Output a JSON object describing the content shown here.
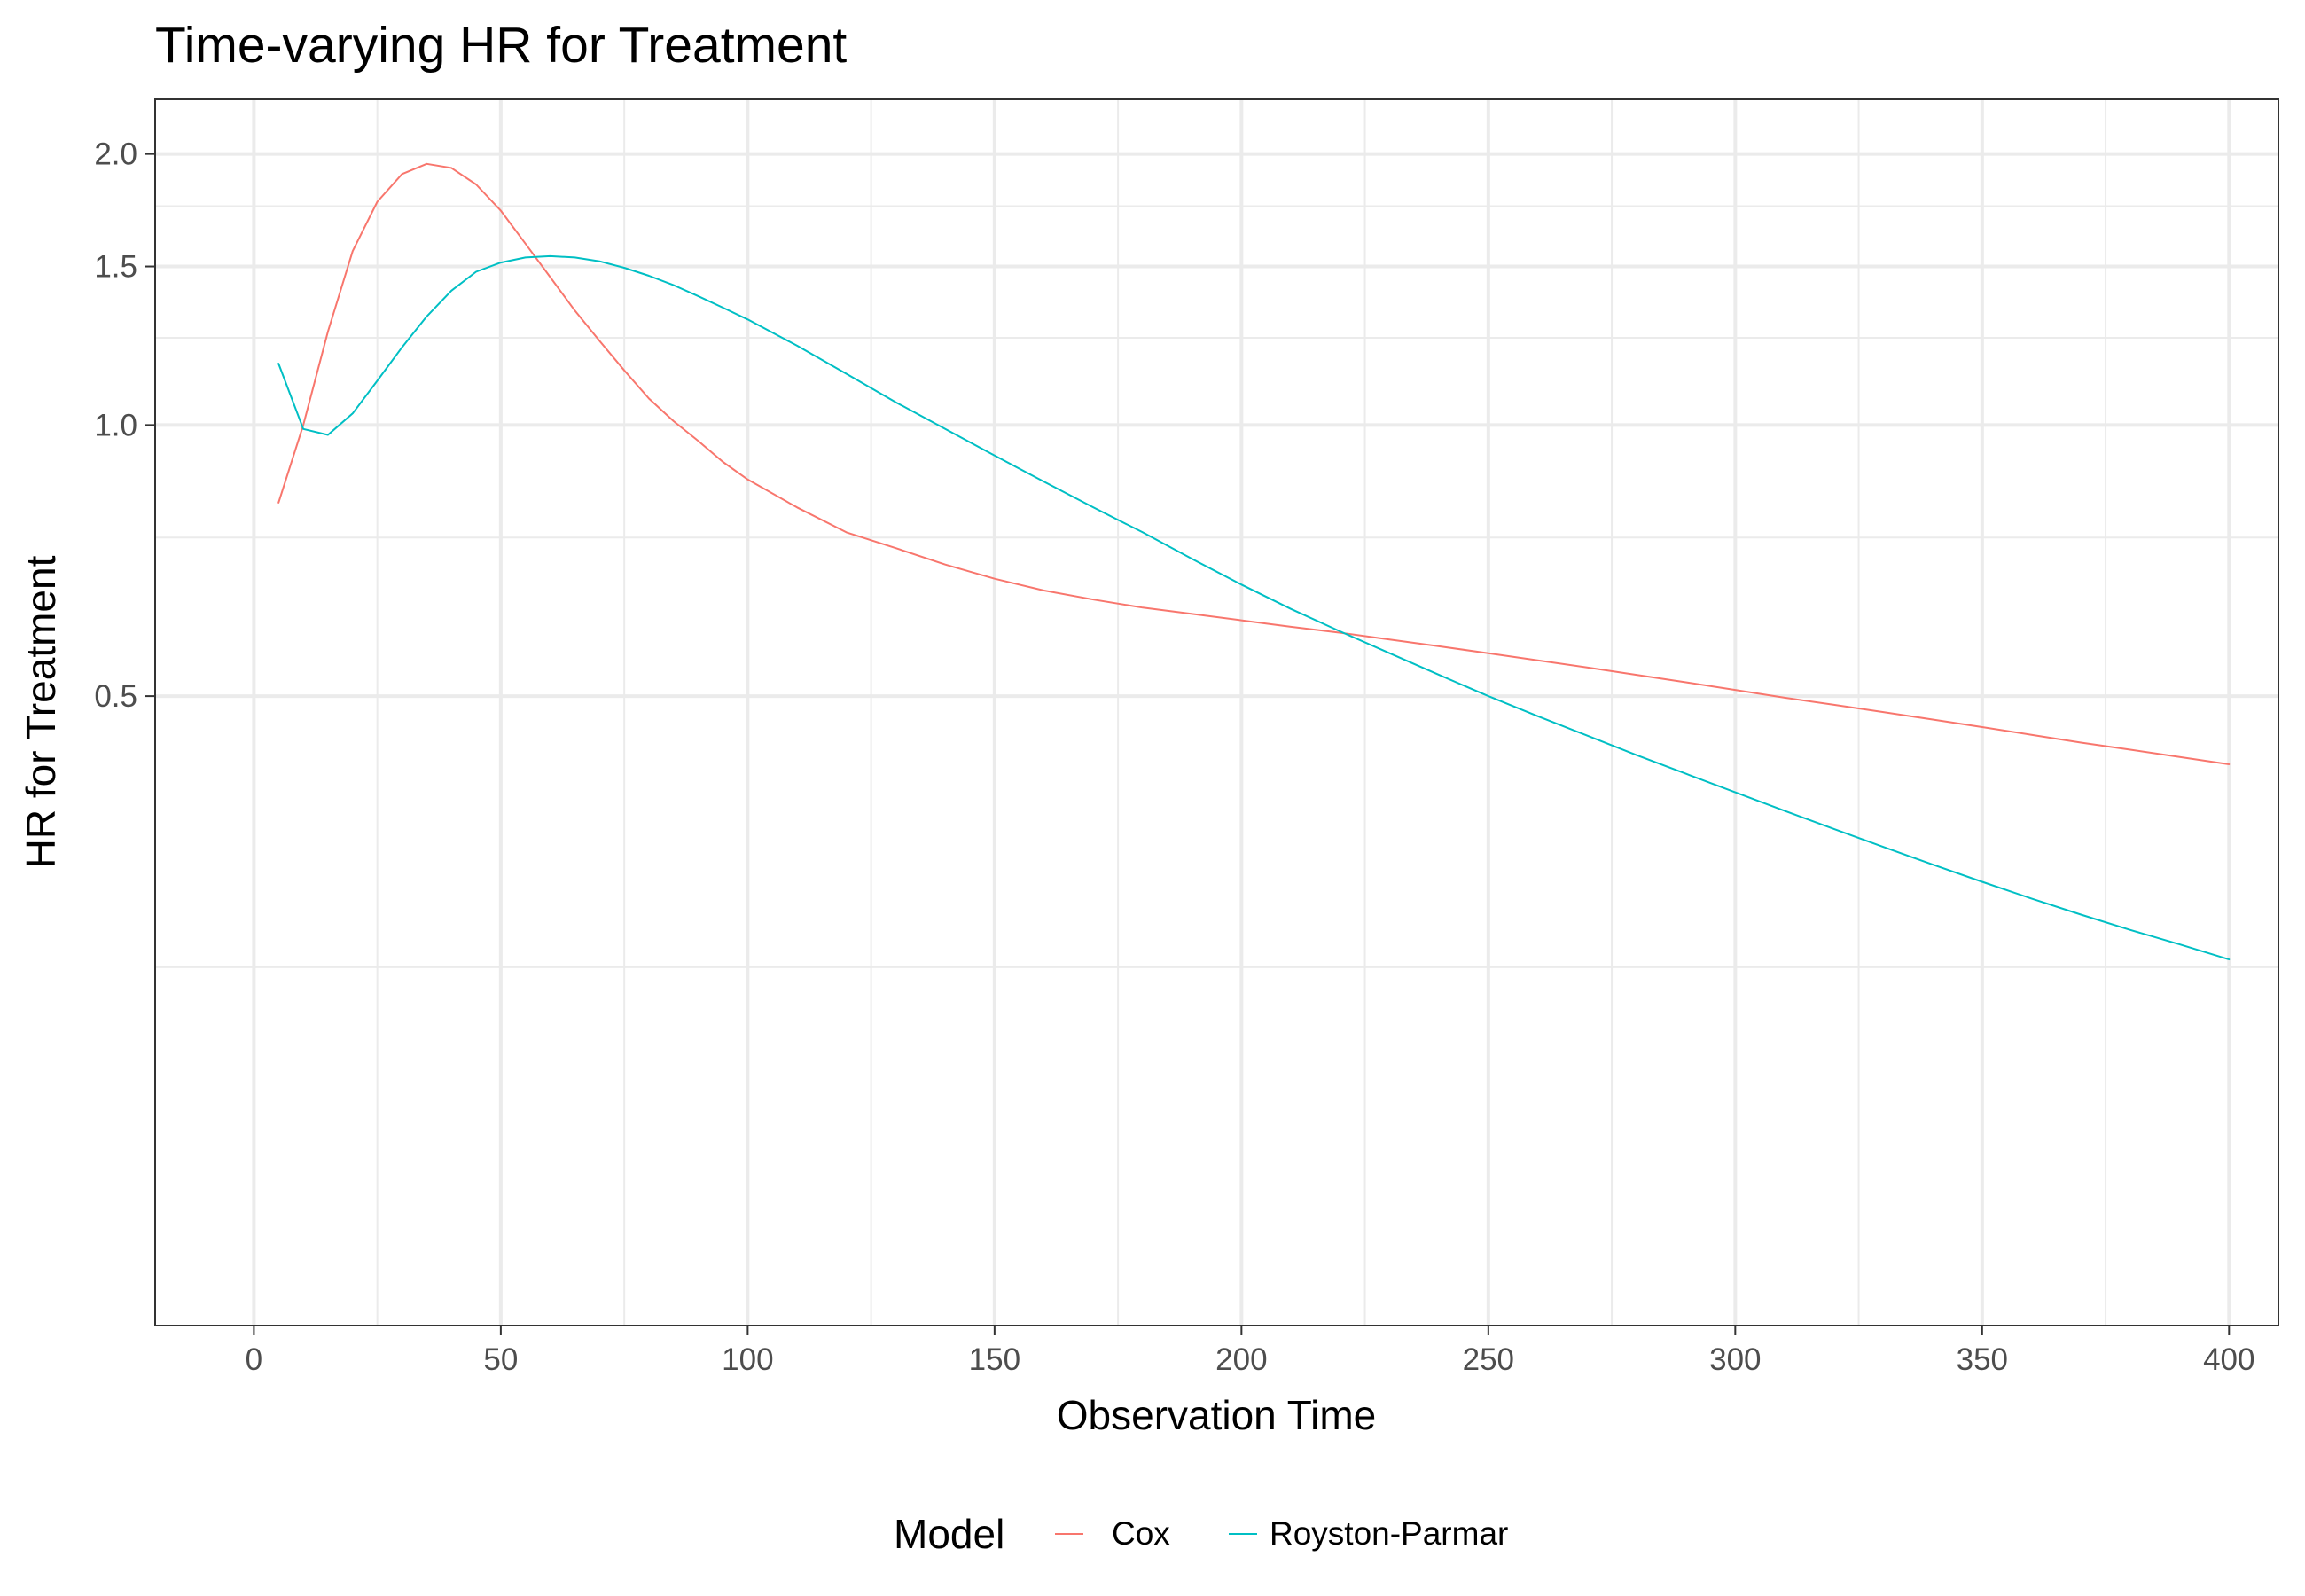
{
  "chart_data": {
    "type": "line",
    "title": "Time-varying HR for Treatment",
    "xlabel": "Observation Time",
    "ylabel": "HR for Treatment",
    "x_scale": "linear",
    "y_scale": "log",
    "xlim": [
      -20,
      410
    ],
    "ylim": [
      0.1,
      2.3
    ],
    "x_ticks": [
      0,
      50,
      100,
      150,
      200,
      250,
      300,
      350,
      400
    ],
    "x_tick_labels": [
      "0",
      "50",
      "100",
      "150",
      "200",
      "250",
      "300",
      "350",
      "400"
    ],
    "x_minor_ticks": [
      25,
      75,
      125,
      175,
      225,
      275,
      325,
      375
    ],
    "y_ticks": [
      0.5,
      1.0,
      1.5,
      2.0
    ],
    "y_tick_labels": [
      "0.5",
      "1.0",
      "1.5",
      "2.0"
    ],
    "y_minor_ticks": [
      0.25,
      0.75,
      1.25,
      1.75
    ],
    "grid": true,
    "legend": {
      "title": "Model",
      "position": "bottom"
    },
    "series": [
      {
        "name": "Cox",
        "color": "#F8766D",
        "x": [
          5,
          10,
          15,
          20,
          25,
          30,
          35,
          40,
          45,
          50,
          55,
          60,
          65,
          70,
          75,
          80,
          85,
          90,
          95,
          100,
          110,
          120,
          130,
          140,
          150,
          160,
          170,
          180,
          190,
          200,
          210,
          220,
          230,
          240,
          250,
          260,
          270,
          280,
          290,
          300,
          310,
          320,
          330,
          340,
          350,
          360,
          370,
          380,
          390,
          400
        ],
        "values": [
          0.82,
          1.0,
          1.27,
          1.56,
          1.77,
          1.9,
          1.95,
          1.93,
          1.85,
          1.73,
          1.59,
          1.46,
          1.34,
          1.24,
          1.15,
          1.07,
          1.01,
          0.96,
          0.91,
          0.87,
          0.81,
          0.76,
          0.73,
          0.7,
          0.675,
          0.655,
          0.64,
          0.627,
          0.617,
          0.607,
          0.597,
          0.588,
          0.578,
          0.568,
          0.558,
          0.548,
          0.538,
          0.528,
          0.518,
          0.508,
          0.498,
          0.489,
          0.48,
          0.471,
          0.462,
          0.453,
          0.444,
          0.436,
          0.428,
          0.42
        ]
      },
      {
        "name": "Royston-Parmar",
        "color": "#00BFC4",
        "x": [
          5,
          10,
          15,
          20,
          25,
          30,
          35,
          40,
          45,
          50,
          55,
          60,
          65,
          70,
          75,
          80,
          85,
          90,
          95,
          100,
          110,
          120,
          130,
          140,
          150,
          160,
          170,
          180,
          190,
          200,
          210,
          220,
          230,
          240,
          250,
          260,
          270,
          280,
          290,
          300,
          310,
          320,
          330,
          340,
          350,
          360,
          370,
          380,
          390,
          400
        ],
        "values": [
          1.17,
          0.99,
          0.975,
          1.03,
          1.12,
          1.22,
          1.32,
          1.41,
          1.48,
          1.515,
          1.535,
          1.54,
          1.535,
          1.52,
          1.495,
          1.465,
          1.43,
          1.39,
          1.35,
          1.31,
          1.225,
          1.14,
          1.06,
          0.99,
          0.925,
          0.865,
          0.81,
          0.76,
          0.71,
          0.665,
          0.625,
          0.59,
          0.558,
          0.528,
          0.5,
          0.475,
          0.452,
          0.43,
          0.41,
          0.391,
          0.373,
          0.356,
          0.34,
          0.325,
          0.311,
          0.298,
          0.286,
          0.275,
          0.265,
          0.255
        ]
      }
    ]
  }
}
